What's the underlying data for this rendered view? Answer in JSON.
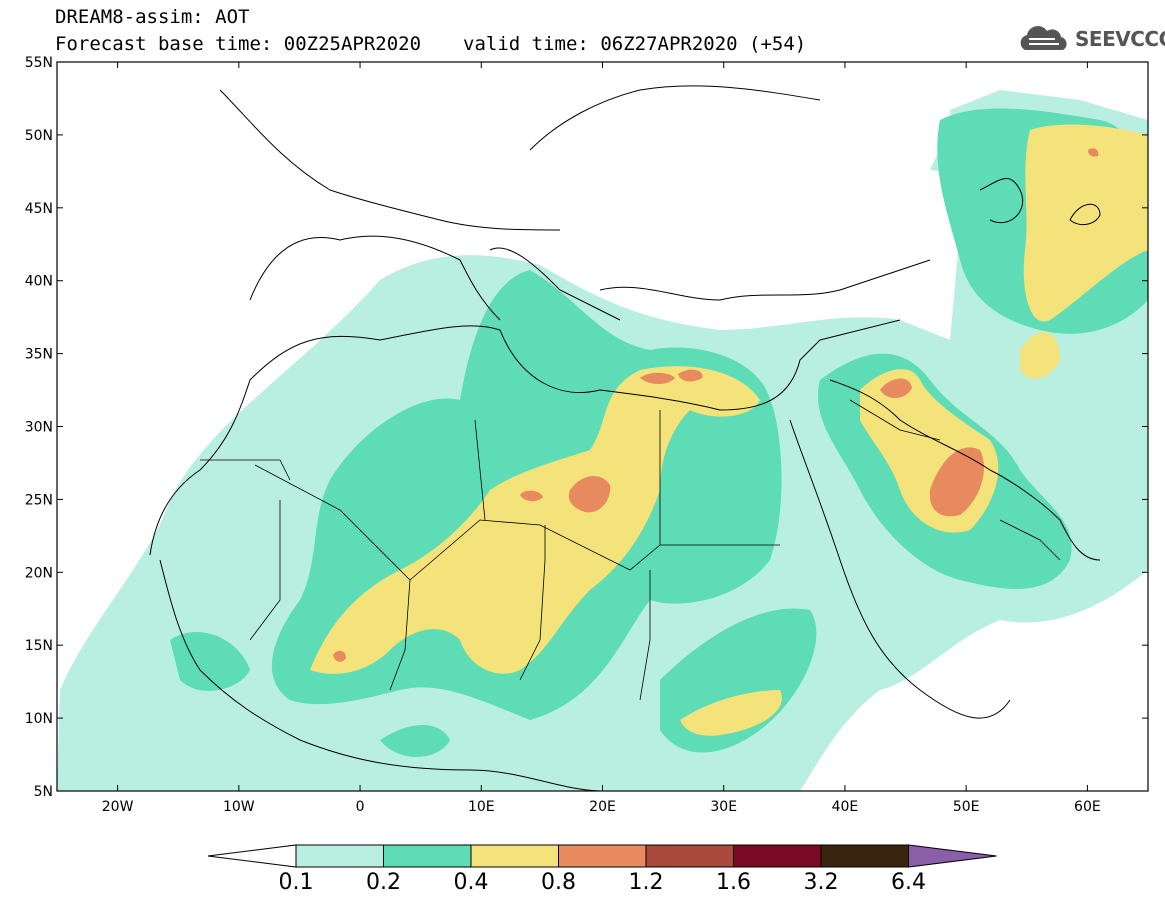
{
  "header": {
    "title_line1": "DREAM8-assim: AOT",
    "base_time": "Forecast base time: 00Z25APR2020",
    "valid_time": "valid time: 06Z27APR2020 (+54)"
  },
  "logo": {
    "text": "SEEVCCC",
    "icon": "cloud-icon"
  },
  "axes": {
    "lat_labels": [
      "55N",
      "50N",
      "45N",
      "40N",
      "35N",
      "30N",
      "25N",
      "20N",
      "15N",
      "10N",
      "5N"
    ],
    "lon_labels": [
      "20W",
      "10W",
      "0",
      "10E",
      "20E",
      "30E",
      "40E",
      "50E",
      "60E"
    ],
    "lat_range": [
      5,
      55
    ],
    "lon_range": [
      -25,
      65
    ]
  },
  "colorbar": {
    "labels": [
      "0.1",
      "0.2",
      "0.4",
      "0.8",
      "1.2",
      "1.6",
      "3.2",
      "6.4"
    ],
    "colors": [
      "#b9efe0",
      "#5ddcb6",
      "#f4e27a",
      "#e88a5f",
      "#a94a3c",
      "#7a0a25",
      "#3a2510",
      "#8b5fa8"
    ]
  }
}
